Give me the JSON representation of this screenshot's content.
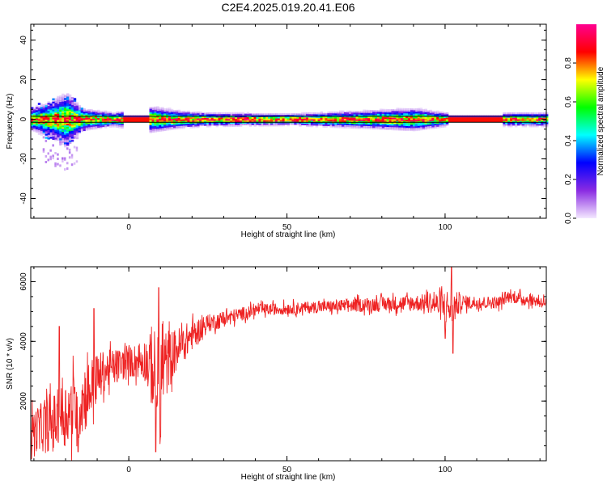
{
  "title": "C2E4.2025.019.20.41.E06",
  "chart_data": [
    {
      "type": "heatmap",
      "xlabel": "Height of straight line (km)",
      "ylabel": "Frequency (Hz)",
      "xlim": [
        -31,
        132
      ],
      "ylim": [
        -50,
        48
      ],
      "x_ticks": [
        0,
        50,
        100
      ],
      "x_tick_labels": [
        "0",
        "50",
        "100"
      ],
      "y_ticks": [
        40,
        20,
        0,
        -20,
        -40
      ],
      "y_tick_labels": [
        "40",
        "20",
        "0",
        "-20",
        "-40"
      ],
      "horizontal_lines_hz": [
        1.5,
        -1.5
      ],
      "colorbar": {
        "label": "Normalized spectral amplitude",
        "range": [
          0,
          1
        ],
        "ticks": [
          0.0,
          0.2,
          0.4,
          0.6,
          0.8
        ],
        "tick_labels": [
          "0.0",
          "0.2",
          "0.4",
          "0.6",
          "0.8"
        ],
        "colors": [
          "#f4e8ff",
          "#8a2be2",
          "#0000ff",
          "#00ffff",
          "#00ff00",
          "#ffff00",
          "#ff0000",
          "#ff0090"
        ]
      },
      "data_gaps_km": [
        [
          -2,
          6
        ],
        [
          101,
          118
        ]
      ],
      "spectral_spread": [
        {
          "x": -31,
          "half_width_hz": 5
        },
        {
          "x": -25,
          "half_width_hz": 8
        },
        {
          "x": -20,
          "half_width_hz": 12
        },
        {
          "x": -15,
          "half_width_hz": 5
        },
        {
          "x": -10,
          "half_width_hz": 4
        },
        {
          "x": -5,
          "half_width_hz": 3
        },
        {
          "x": 6,
          "half_width_hz": 6
        },
        {
          "x": 15,
          "half_width_hz": 4
        },
        {
          "x": 25,
          "half_width_hz": 3
        },
        {
          "x": 50,
          "half_width_hz": 2.5
        },
        {
          "x": 75,
          "half_width_hz": 4
        },
        {
          "x": 90,
          "half_width_hz": 5
        },
        {
          "x": 100,
          "half_width_hz": 3
        },
        {
          "x": 120,
          "half_width_hz": 3
        },
        {
          "x": 132,
          "half_width_hz": 3
        }
      ]
    },
    {
      "type": "line",
      "xlabel": "Height of straight line (km)",
      "ylabel": "SNR (10 * v/v)",
      "xlim": [
        -31,
        132
      ],
      "ylim": [
        0,
        6500
      ],
      "x_ticks": [
        0,
        50,
        100
      ],
      "x_tick_labels": [
        "0",
        "50",
        "100"
      ],
      "y_ticks": [
        2000,
        4000,
        6000
      ],
      "y_tick_labels": [
        "2000",
        "4000",
        "6000"
      ],
      "series_color": "#ee2222",
      "envelope": [
        {
          "x": -31,
          "mean": 1000,
          "noise": 700
        },
        {
          "x": -25,
          "mean": 1200,
          "noise": 900
        },
        {
          "x": -15,
          "mean": 2000,
          "noise": 1300
        },
        {
          "x": -8,
          "mean": 3000,
          "noise": 700
        },
        {
          "x": 0,
          "mean": 3300,
          "noise": 500
        },
        {
          "x": 5,
          "mean": 3400,
          "noise": 700
        },
        {
          "x": 9,
          "mean": 2800,
          "noise": 1700
        },
        {
          "x": 14,
          "mean": 3600,
          "noise": 800
        },
        {
          "x": 20,
          "mean": 4200,
          "noise": 500
        },
        {
          "x": 25,
          "mean": 4600,
          "noise": 300
        },
        {
          "x": 40,
          "mean": 5050,
          "noise": 200
        },
        {
          "x": 60,
          "mean": 5150,
          "noise": 200
        },
        {
          "x": 80,
          "mean": 5250,
          "noise": 250
        },
        {
          "x": 95,
          "mean": 5300,
          "noise": 300
        },
        {
          "x": 102,
          "mean": 5100,
          "noise": 700
        },
        {
          "x": 105,
          "mean": 5300,
          "noise": 250
        },
        {
          "x": 117,
          "mean": 5300,
          "noise": 200
        },
        {
          "x": 120,
          "mean": 5500,
          "noise": 200
        },
        {
          "x": 132,
          "mean": 5300,
          "noise": 200
        }
      ],
      "spikes": [
        {
          "x": -22,
          "y": 4500
        },
        {
          "x": -11,
          "y": 5100
        },
        {
          "x": -16,
          "y": 300
        },
        {
          "x": 8.5,
          "y": 300
        },
        {
          "x": 9.5,
          "y": 5800
        },
        {
          "x": 10,
          "y": 800
        },
        {
          "x": 102,
          "y": 6500
        },
        {
          "x": 102.5,
          "y": 3600
        },
        {
          "x": 100,
          "y": 4100
        }
      ]
    }
  ]
}
